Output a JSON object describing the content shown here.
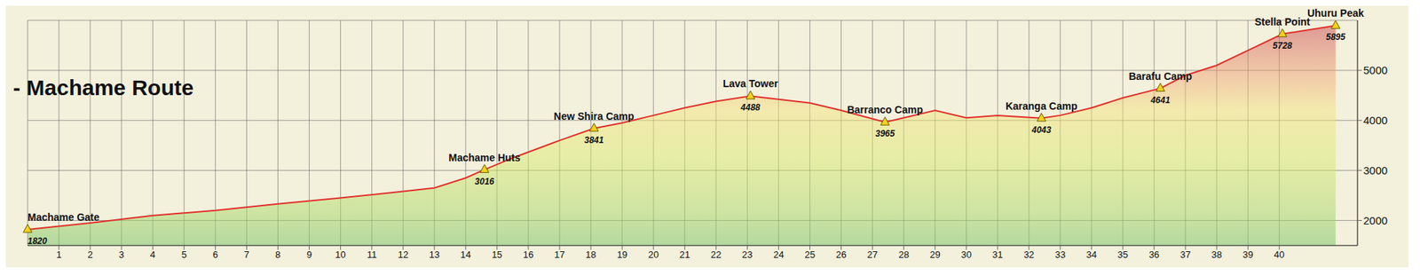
{
  "chart_data": {
    "type": "area",
    "title": "- Machame Route",
    "x": [
      0,
      2,
      4,
      6,
      8,
      10,
      12,
      13,
      14,
      14.6,
      15.5,
      17,
      18.1,
      19,
      20,
      21,
      22,
      23.1,
      24,
      25,
      26,
      27.4,
      28,
      29,
      30,
      31,
      32.4,
      33,
      34,
      35,
      36.2,
      37,
      38,
      39,
      40.1,
      41.8
    ],
    "values": [
      1820,
      1950,
      2100,
      2200,
      2330,
      2450,
      2580,
      2650,
      2850,
      3016,
      3250,
      3600,
      3841,
      3950,
      4100,
      4250,
      4380,
      4488,
      4420,
      4350,
      4200,
      3965,
      4050,
      4200,
      4050,
      4100,
      4043,
      4100,
      4250,
      4450,
      4641,
      4900,
      5100,
      5400,
      5728,
      5895
    ],
    "color": "#e0302a",
    "xlim": [
      0,
      42.5
    ],
    "xticks": [
      1,
      2,
      3,
      4,
      5,
      6,
      7,
      8,
      9,
      10,
      11,
      12,
      13,
      14,
      15,
      16,
      17,
      18,
      19,
      20,
      21,
      22,
      23,
      24,
      25,
      26,
      27,
      28,
      29,
      30,
      31,
      32,
      33,
      34,
      35,
      36,
      37,
      38,
      39,
      40
    ],
    "ylim": [
      1500,
      6000
    ],
    "yticks": [
      2000,
      3000,
      4000,
      5000
    ],
    "grid": true,
    "annotations": [
      {
        "text": "Machame Gate",
        "x": 0,
        "y": 1820
      },
      {
        "text": "Machame Huts",
        "x": 14.6,
        "y": 3016
      },
      {
        "text": "New Shira Camp",
        "x": 18.1,
        "y": 3841
      },
      {
        "text": "Lava Tower",
        "x": 23.1,
        "y": 4488
      },
      {
        "text": "Barranco Camp",
        "x": 27.4,
        "y": 3965
      },
      {
        "text": "Karanga Camp",
        "x": 32.4,
        "y": 4043
      },
      {
        "text": "Barafu Camp",
        "x": 36.2,
        "y": 4641
      },
      {
        "text": "Stella Point",
        "x": 40.1,
        "y": 5728
      },
      {
        "text": "Uhuru Peak",
        "x": 41.8,
        "y": 5895
      }
    ]
  }
}
